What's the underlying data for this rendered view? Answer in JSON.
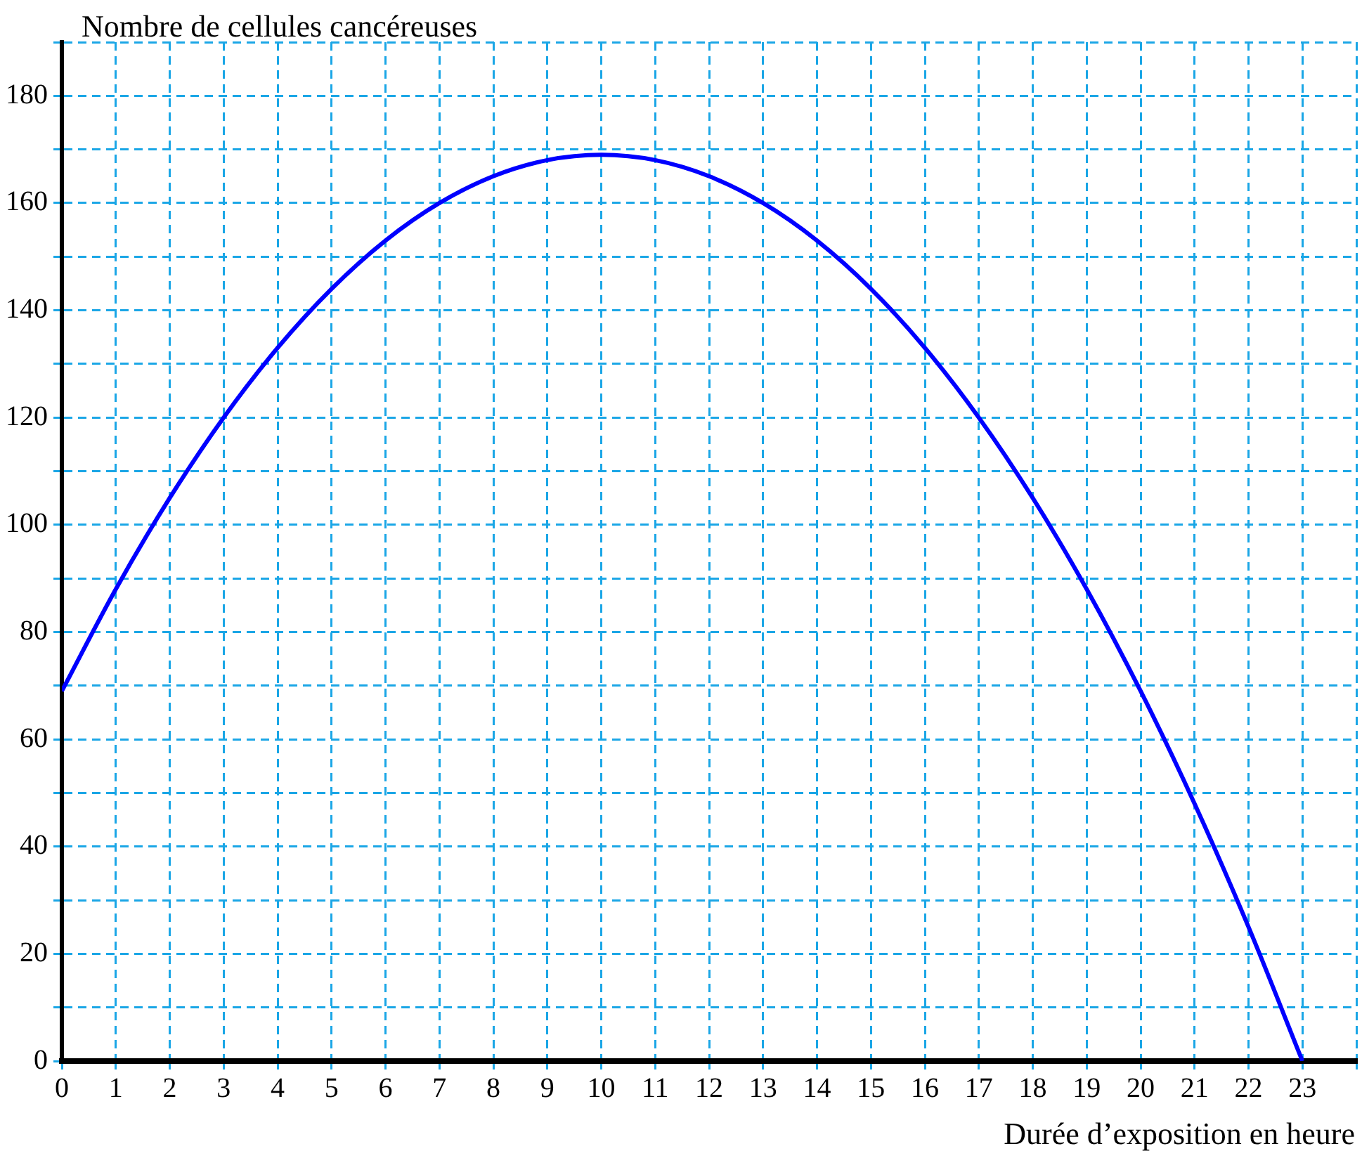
{
  "chart_data": {
    "type": "line",
    "xlabel": "Durée d’exposition en heure",
    "ylabel": "Nombre de cellules cancéreuses",
    "x": [
      0,
      1,
      2,
      3,
      4,
      5,
      6,
      7,
      8,
      9,
      10,
      11,
      12,
      13,
      14,
      15,
      16,
      17,
      18,
      19,
      20,
      21,
      22,
      23
    ],
    "series": [
      {
        "color": "#0000ff",
        "values": [
          69,
          88,
          105,
          120,
          133,
          144,
          153,
          160,
          165,
          168,
          169,
          168,
          165,
          160,
          153,
          144,
          133,
          120,
          105,
          88,
          69,
          48,
          25,
          0
        ]
      }
    ],
    "xlim": [
      0,
      24
    ],
    "ylim": [
      0,
      190
    ],
    "xticks": [
      0,
      1,
      2,
      3,
      4,
      5,
      6,
      7,
      8,
      9,
      10,
      11,
      12,
      13,
      14,
      15,
      16,
      17,
      18,
      19,
      20,
      21,
      22,
      23,
      {
        "value": 24,
        "label": null
      }
    ],
    "yticks": [
      0,
      {
        "value": 10,
        "label": null
      },
      20,
      {
        "value": 30,
        "label": null
      },
      40,
      {
        "value": 50,
        "label": null
      },
      60,
      {
        "value": 70,
        "label": null
      },
      80,
      {
        "value": 90,
        "label": null
      },
      100,
      {
        "value": 110,
        "label": null
      },
      120,
      {
        "value": 130,
        "label": null
      },
      140,
      {
        "value": 150,
        "label": null
      },
      160,
      {
        "value": 170,
        "label": null
      },
      180,
      {
        "value": 190,
        "label": null
      }
    ],
    "grid": true,
    "legend": false,
    "marker": "none",
    "line_style": "solid"
  }
}
